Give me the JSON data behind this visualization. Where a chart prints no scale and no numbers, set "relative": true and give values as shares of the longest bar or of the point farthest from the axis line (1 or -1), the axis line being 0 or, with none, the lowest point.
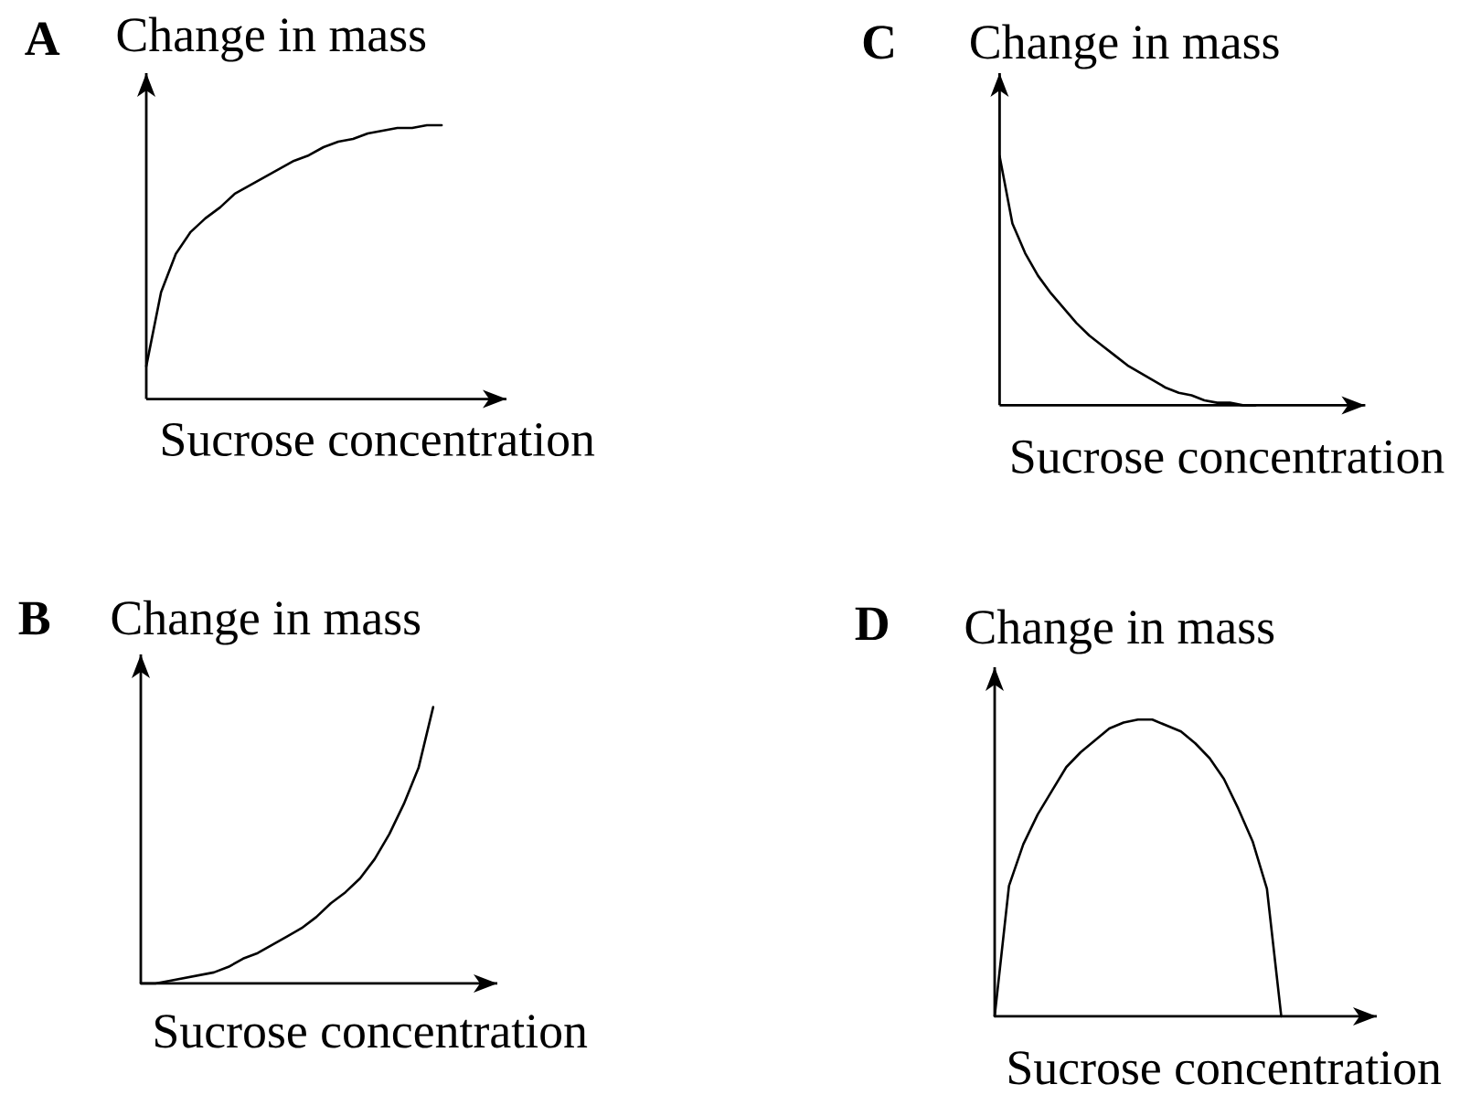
{
  "chart_data": [
    {
      "type": "line",
      "title": "A",
      "ylabel": "Change in mass",
      "xlabel": "Sucrose concentration",
      "relative": true,
      "categories": [
        null,
        null,
        null,
        null,
        null,
        null,
        null,
        null,
        null,
        null,
        null,
        null,
        null,
        null,
        null,
        null,
        null,
        null,
        null,
        null,
        null
      ],
      "color": "#000000",
      "values": [
        0.12,
        0.39,
        0.53,
        0.61,
        0.66,
        0.7,
        0.75,
        0.78,
        0.81,
        0.84,
        0.87,
        0.89,
        0.92,
        0.94,
        0.95,
        0.97,
        0.98,
        0.99,
        0.99,
        1.0,
        1.0
      ]
    },
    {
      "type": "line",
      "title": "C",
      "ylabel": "Change in mass",
      "xlabel": "Sucrose concentration",
      "relative": true,
      "categories": [
        null,
        null,
        null,
        null,
        null,
        null,
        null,
        null,
        null,
        null,
        null,
        null,
        null,
        null,
        null,
        null,
        null,
        null,
        null,
        null,
        null
      ],
      "color": "#000000",
      "values": [
        1.0,
        0.73,
        0.61,
        0.52,
        0.45,
        0.39,
        0.33,
        0.28,
        0.24,
        0.2,
        0.16,
        0.13,
        0.1,
        0.07,
        0.05,
        0.04,
        0.02,
        0.01,
        0.01,
        0,
        0
      ]
    },
    {
      "type": "line",
      "title": "B",
      "ylabel": "Change in mass",
      "xlabel": "Sucrose concentration",
      "relative": true,
      "categories": [
        null,
        null,
        null,
        null,
        null,
        null,
        null,
        null,
        null,
        null,
        null,
        null,
        null,
        null,
        null,
        null,
        null,
        null,
        null,
        null,
        null
      ],
      "color": "#000000",
      "values": [
        0,
        0,
        0.01,
        0.02,
        0.03,
        0.04,
        0.06,
        0.09,
        0.11,
        0.14,
        0.17,
        0.2,
        0.24,
        0.29,
        0.33,
        0.38,
        0.45,
        0.54,
        0.65,
        0.78,
        1.0
      ]
    },
    {
      "type": "line",
      "title": "D",
      "ylabel": "Change in mass",
      "xlabel": "Sucrose concentration",
      "relative": true,
      "categories": [
        null,
        null,
        null,
        null,
        null,
        null,
        null,
        null,
        null,
        null,
        null,
        null,
        null,
        null,
        null,
        null,
        null,
        null,
        null,
        null,
        null
      ],
      "color": "#000000",
      "values": [
        0,
        0.44,
        0.58,
        0.68,
        0.76,
        0.84,
        0.89,
        0.93,
        0.97,
        0.99,
        1.0,
        1.0,
        0.98,
        0.96,
        0.92,
        0.87,
        0.8,
        0.7,
        0.59,
        0.43,
        0
      ]
    }
  ]
}
